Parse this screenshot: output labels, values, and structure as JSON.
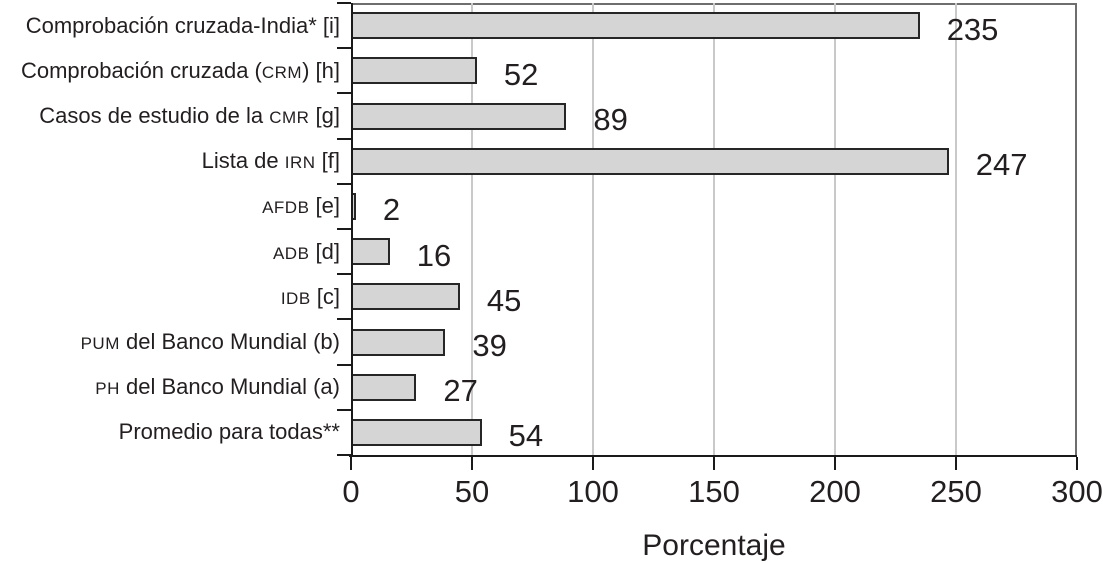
{
  "chart_data": {
    "type": "bar",
    "orientation": "horizontal",
    "title": "",
    "xlabel": "Porcentaje",
    "ylabel": "",
    "xlim": [
      0,
      300
    ],
    "x_ticks": [
      0,
      50,
      100,
      150,
      200,
      250,
      300
    ],
    "grid": true,
    "legend": false,
    "categories": [
      "Comprobación cruzada-India* [i]",
      "Comprobación cruzada (CRM) [h]",
      "Casos de estudio de la CMR [g]",
      "Lista de IRN [f]",
      "AFDB [e]",
      "ADB [d]",
      "IDB [c]",
      "PUM del Banco Mundial (b)",
      "PH del Banco Mundial (a)",
      "Promedio para todas**"
    ],
    "values": [
      235,
      52,
      89,
      247,
      2,
      16,
      45,
      39,
      27,
      54
    ],
    "smallcaps_terms": [
      "AFDB",
      "CRM",
      "CMR",
      "IRN",
      "ADB",
      "IDB",
      "PUM",
      "PH"
    ],
    "colors": {
      "bar_fill": "#d5d5d5",
      "bar_border": "#262626",
      "gridline": "#c9c9c9",
      "axis": "#1a1a1a",
      "frame": "#6e6e6e",
      "text": "#231f20",
      "background": "#ffffff"
    }
  }
}
